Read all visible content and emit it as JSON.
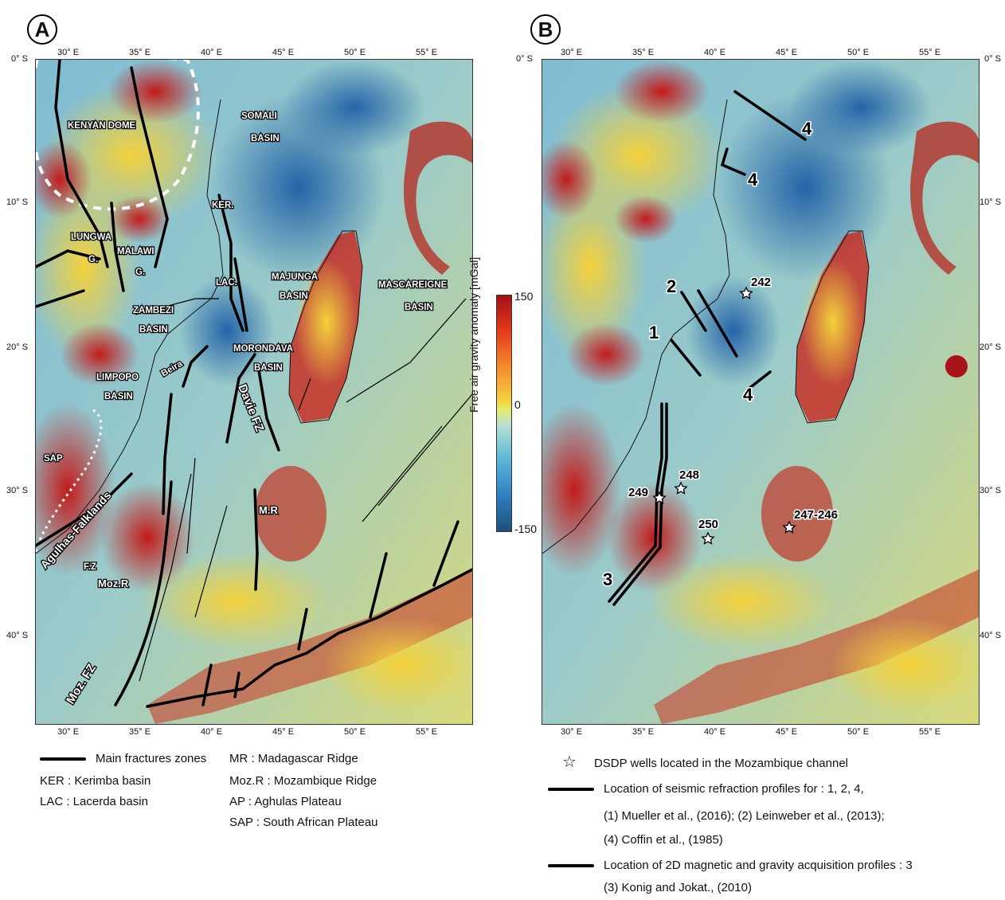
{
  "panels": {
    "a_letter": "A",
    "b_letter": "B"
  },
  "ticks": {
    "lon_a": [
      "30° E",
      "35° E",
      "40° E",
      "45° E",
      "50° E",
      "55° E"
    ],
    "lon_b": [
      "30° E",
      "35° E",
      "40° E",
      "45° E",
      "50° E",
      "55° E"
    ],
    "lat": [
      "0° S",
      "10° S",
      "20° S",
      "30° S",
      "40° S"
    ]
  },
  "map_a": {
    "labels": {
      "kenyan_dome": "KENYAN DOME",
      "somali1": "SOMALI",
      "somali2": "BASIN",
      "ker": "KER.",
      "lungwa1": "LUNGWA",
      "lungwa2": "G.",
      "malawi1": "MALAWI",
      "malawi2": "G.",
      "lac": "LAC.",
      "majunga1": "MAJUNGA",
      "majunga2": "BASIN",
      "mascareigne1": "MASCAREIGNE",
      "mascareigne2": "BASIN",
      "zambezi1": "ZAMBEZI",
      "zambezi2": "BASIN",
      "morondava1": "MORONDAVA",
      "morondava2": "BASIN",
      "beira": "Beira",
      "limpopo1": "LIMPOPO",
      "limpopo2": "BASIN",
      "davie": "Davie FZ",
      "sap": "SAP",
      "agulhas1": "Agulhas-Falklands",
      "agulhas2": "F.Z",
      "mr": "M.R",
      "mozr": "Moz.R",
      "mozfz": "Moz. FZ"
    }
  },
  "map_b": {
    "profiles": {
      "p1": "1",
      "p2": "2",
      "p3": "3",
      "p4a": "4",
      "p4b": "4",
      "p4c": "4"
    },
    "wells": {
      "w242": "242",
      "w248": "248",
      "w249": "249",
      "w250": "250",
      "w246": "247-246"
    }
  },
  "colorbar": {
    "title": "Free air gravity anomaly [mGal]",
    "max": "150",
    "mid": "0",
    "min": "-150",
    "colors": [
      "#a50f15",
      "#e23b1d",
      "#f58a2a",
      "#f5d442",
      "#b9e0d1",
      "#58b6d9",
      "#2f7fc1",
      "#1d4f7a"
    ]
  },
  "legend_a": {
    "main_fz": "Main fractures zones",
    "ker": "KER : Kerimba basin",
    "lac": "LAC : Lacerda basin",
    "mr": "MR : Madagascar Ridge",
    "mozr": "Moz.R : Mozambique Ridge",
    "ap": "AP :  Aghulas Plateau",
    "sap": "SAP : South African Plateau"
  },
  "legend_b": {
    "dsdp": "DSDP wells located in the Mozambique channel",
    "seismic": "Location of seismic refraction profiles for : 1, 2, 4,",
    "ref1": "(1) Mueller et al., (2016); (2) Leinweber et al., (2013);",
    "ref2": "(4) Coffin et al., (1985)",
    "magnetic": "Location of 2D magnetic and gravity acquisition profiles : 3",
    "ref3": "(3) Konig and Jokat., (2010)"
  }
}
